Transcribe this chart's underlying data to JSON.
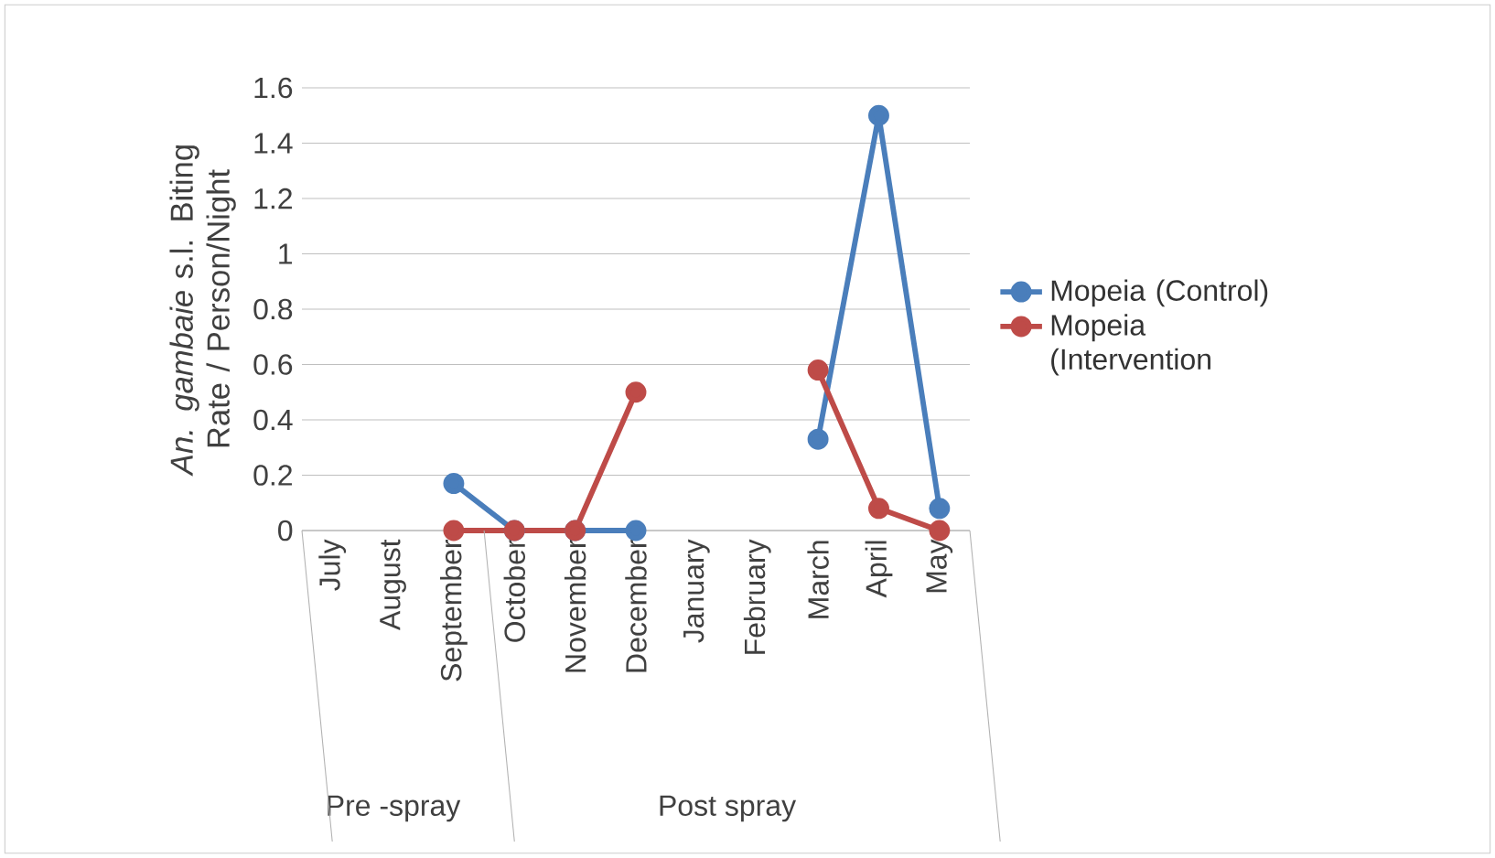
{
  "chart_data": {
    "type": "line",
    "ylabel": "*An. gambaie* s.l.  Biting Rate / Person/Night",
    "categories": [
      "July",
      "August",
      "September",
      "October",
      "November",
      "December",
      "January",
      "February",
      "March",
      "April",
      "May"
    ],
    "series": [
      {
        "name": "Mopeia (Control)",
        "color": "#4a7ebb",
        "values": [
          null,
          null,
          0.17,
          0,
          0,
          0,
          null,
          null,
          0.33,
          1.5,
          0.08
        ]
      },
      {
        "name": "Mopeia (Intervention",
        "color": "#be4b48",
        "values": [
          null,
          null,
          0,
          0,
          0,
          0.5,
          null,
          null,
          0.58,
          0.08,
          0
        ]
      }
    ],
    "annotations": [
      "Pre -spray",
      "Post spray"
    ],
    "ylim": [
      0,
      1.6
    ],
    "yticks": [
      0,
      0.2,
      0.4,
      0.6,
      0.8,
      1,
      1.2,
      1.4,
      1.6
    ],
    "grid": "y",
    "legend": "right",
    "marker": "circle",
    "line_style": "solid"
  }
}
